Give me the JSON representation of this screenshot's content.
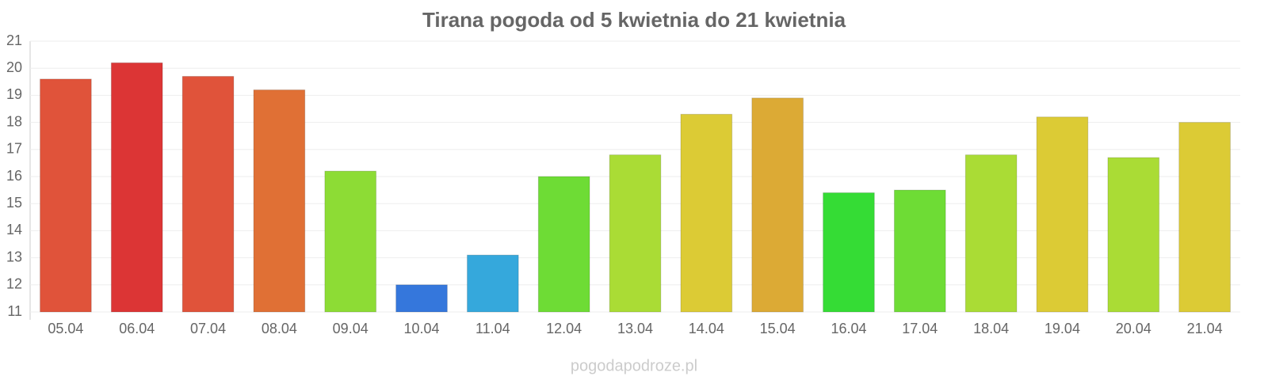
{
  "chart_data": {
    "type": "bar",
    "title": "Tirana pogoda od 5 kwietnia do 21 kwietnia",
    "categories": [
      "05.04",
      "06.04",
      "07.04",
      "08.04",
      "09.04",
      "10.04",
      "11.04",
      "12.04",
      "13.04",
      "14.04",
      "15.04",
      "16.04",
      "17.04",
      "18.04",
      "19.04",
      "20.04",
      "21.04"
    ],
    "values": [
      19.6,
      20.2,
      19.7,
      19.2,
      16.2,
      12.0,
      13.1,
      16.0,
      16.8,
      18.3,
      18.9,
      15.4,
      15.5,
      16.8,
      18.2,
      16.7,
      18.0
    ],
    "colors": [
      "#e0533a",
      "#dc3535",
      "#e0533a",
      "#e07035",
      "#8ddc35",
      "#3577dc",
      "#35a8dc",
      "#6edc35",
      "#aadc35",
      "#dccb35",
      "#dcaa35",
      "#35dc35",
      "#6edc35",
      "#aadc35",
      "#dccb35",
      "#aadc35",
      "#dccb35"
    ],
    "ylim": [
      11,
      21
    ],
    "yticks": [
      11,
      12,
      13,
      14,
      15,
      16,
      17,
      18,
      19,
      20,
      21
    ],
    "grid": true,
    "source": "pogodapodroze.pl"
  }
}
